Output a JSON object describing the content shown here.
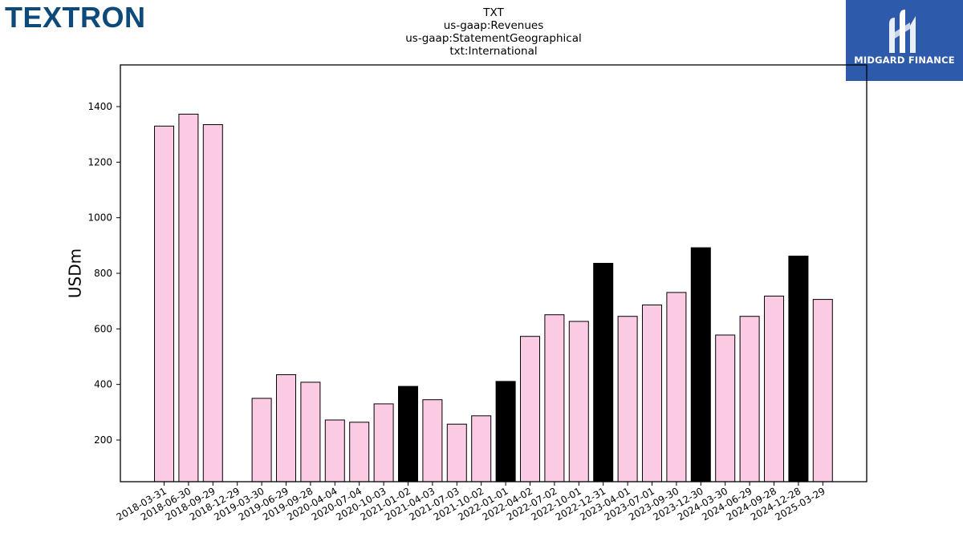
{
  "header": {
    "left_logo_text": "TEXTRON",
    "right_logo_text": "MIDGARD FINANCE",
    "right_logo_icon": "midgard-m-icon"
  },
  "colors": {
    "bar_default": "#fbcae3",
    "bar_highlight": "#000000",
    "left_logo": "#0b4a7a",
    "right_logo_bg": "#2e5aac"
  },
  "chart_data": {
    "type": "bar",
    "title_lines": [
      "TXT",
      "us-gaap:Revenues",
      "us-gaap:StatementGeographical",
      "txt:International"
    ],
    "xlabel": "",
    "ylabel": "USDm",
    "ylim": [
      50,
      1550
    ],
    "yticks": [
      200,
      400,
      600,
      800,
      1000,
      1200,
      1400
    ],
    "grid": false,
    "categories": [
      "2018-03-31",
      "2018-06-30",
      "2018-09-29",
      "2018-12-29",
      "2019-03-30",
      "2019-06-29",
      "2019-09-28",
      "2020-04-04",
      "2020-07-04",
      "2020-10-03",
      "2021-01-02",
      "2021-04-03",
      "2021-07-03",
      "2021-10-02",
      "2022-01-01",
      "2022-04-02",
      "2022-07-02",
      "2022-10-01",
      "2022-12-31",
      "2023-04-01",
      "2023-07-01",
      "2023-09-30",
      "2023-12-30",
      "2024-03-30",
      "2024-06-29",
      "2024-09-28",
      "2024-12-28",
      "2025-03-29"
    ],
    "values": [
      1330,
      1373,
      1335,
      null,
      350,
      435,
      408,
      272,
      264,
      330,
      393,
      345,
      257,
      287,
      411,
      573,
      651,
      627,
      836,
      645,
      686,
      731,
      892,
      578,
      645,
      718,
      862,
      706
    ],
    "highlight": [
      false,
      false,
      false,
      false,
      false,
      false,
      false,
      false,
      false,
      false,
      true,
      false,
      false,
      false,
      true,
      false,
      false,
      false,
      true,
      false,
      false,
      false,
      true,
      false,
      false,
      false,
      true,
      false
    ]
  }
}
